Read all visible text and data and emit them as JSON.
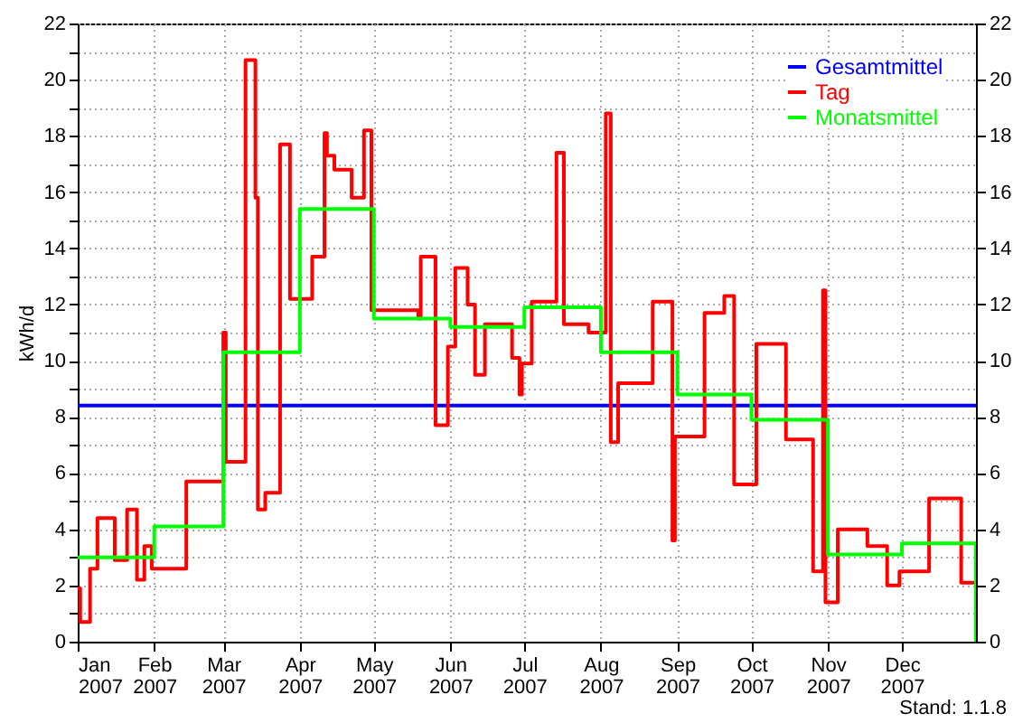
{
  "chart_data": {
    "type": "step",
    "ylabel": "kWh/d",
    "annotations": [
      "Stand: 1.1.8"
    ],
    "xlim": [
      "2007-01-01",
      "2007-12-31"
    ],
    "xticks": [
      {
        "value": "2007-01-01",
        "label": "Jan\n2007"
      },
      {
        "value": "2007-02-01",
        "label": "Feb\n2007"
      },
      {
        "value": "2007-03-01",
        "label": "Mar\n2007"
      },
      {
        "value": "2007-04-01",
        "label": "Apr\n2007"
      },
      {
        "value": "2007-05-01",
        "label": "May\n2007"
      },
      {
        "value": "2007-06-01",
        "label": "Jun\n2007"
      },
      {
        "value": "2007-07-01",
        "label": "Jul\n2007"
      },
      {
        "value": "2007-08-01",
        "label": "Aug\n2007"
      },
      {
        "value": "2007-09-01",
        "label": "Sep\n2007"
      },
      {
        "value": "2007-10-01",
        "label": "Oct\n2007"
      },
      {
        "value": "2007-11-01",
        "label": "Nov\n2007"
      },
      {
        "value": "2007-12-01",
        "label": "Dec\n2007"
      }
    ],
    "ylim": [
      0,
      22
    ],
    "yticks": [
      0,
      {
        "value": 1,
        "label": null
      },
      2,
      {
        "value": 3,
        "label": null
      },
      4,
      {
        "value": 5,
        "label": null
      },
      6,
      {
        "value": 7,
        "label": null
      },
      8,
      {
        "value": 9,
        "label": null
      },
      10,
      {
        "value": 11,
        "label": null
      },
      12,
      {
        "value": 13,
        "label": null
      },
      14,
      {
        "value": 15,
        "label": null
      },
      16,
      {
        "value": 17,
        "label": null
      },
      18,
      {
        "value": 19,
        "label": null
      },
      20,
      {
        "value": 21,
        "label": null
      },
      22
    ],
    "y2lim": [
      0,
      22
    ],
    "y2ticks": [
      0,
      2,
      4,
      6,
      8,
      10,
      12,
      14,
      16,
      18,
      20,
      22
    ],
    "grid": true,
    "legend": "top right",
    "series": [
      {
        "name": "Gesamtmittel",
        "type": "line",
        "color": "#0000ff",
        "x": [
          "2007-01-01",
          "2007-12-31"
        ],
        "values": [
          8.4,
          8.4
        ]
      },
      {
        "name": "Tag",
        "color": "#ff0000",
        "x": [
          "2007-01-01",
          "2007-01-02",
          "2007-01-06",
          "2007-01-09",
          "2007-01-16",
          "2007-01-21",
          "2007-01-25",
          "2007-01-28",
          "2007-01-31",
          "2007-02-14",
          "2007-03-01",
          "2007-03-02",
          "2007-03-10",
          "2007-03-14",
          "2007-03-15",
          "2007-03-18",
          "2007-03-24",
          "2007-03-28",
          "2007-04-06",
          "2007-04-11",
          "2007-04-12",
          "2007-04-15",
          "2007-04-22",
          "2007-04-27",
          "2007-04-30",
          "2007-05-19",
          "2007-05-20",
          "2007-05-26",
          "2007-05-31",
          "2007-06-03",
          "2007-06-08",
          "2007-06-11",
          "2007-06-15",
          "2007-06-26",
          "2007-06-29",
          "2007-06-30",
          "2007-07-04",
          "2007-07-14",
          "2007-07-17",
          "2007-07-27",
          "2007-08-03",
          "2007-08-05",
          "2007-08-08",
          "2007-08-22",
          "2007-08-30",
          "2007-08-31",
          "2007-09-12",
          "2007-09-20",
          "2007-09-24",
          "2007-10-03",
          "2007-10-15",
          "2007-10-26",
          "2007-10-30",
          "2007-10-31",
          "2007-11-05",
          "2007-11-17",
          "2007-11-25",
          "2007-11-30",
          "2007-12-12",
          "2007-12-25",
          "2007-12-31"
        ],
        "values": [
          1.9,
          0.7,
          2.6,
          4.4,
          2.9,
          4.7,
          2.2,
          3.4,
          2.6,
          5.7,
          11.0,
          6.4,
          20.7,
          15.8,
          4.7,
          5.3,
          17.7,
          12.2,
          13.7,
          18.1,
          17.3,
          16.8,
          15.8,
          18.2,
          11.8,
          11.5,
          13.7,
          7.7,
          10.5,
          13.3,
          12.0,
          9.5,
          11.3,
          10.1,
          8.8,
          9.9,
          12.1,
          17.4,
          11.3,
          11.0,
          18.8,
          7.1,
          9.2,
          12.1,
          3.6,
          7.3,
          11.7,
          12.3,
          5.6,
          10.6,
          7.2,
          2.5,
          12.5,
          1.4,
          4.0,
          3.4,
          2.0,
          2.5,
          5.1,
          2.1,
          0
        ]
      },
      {
        "name": "Monatsmittel",
        "color": "#00ff00",
        "x": [
          "2007-01-01",
          "2007-02-01",
          "2007-03-01",
          "2007-04-01",
          "2007-05-01",
          "2007-06-01",
          "2007-07-01",
          "2007-08-01",
          "2007-09-01",
          "2007-10-01",
          "2007-11-01",
          "2007-12-01",
          "2007-12-31"
        ],
        "values": [
          3.0,
          4.1,
          10.3,
          15.4,
          11.5,
          11.2,
          11.9,
          10.3,
          8.8,
          7.9,
          3.1,
          3.5,
          0
        ]
      }
    ]
  }
}
